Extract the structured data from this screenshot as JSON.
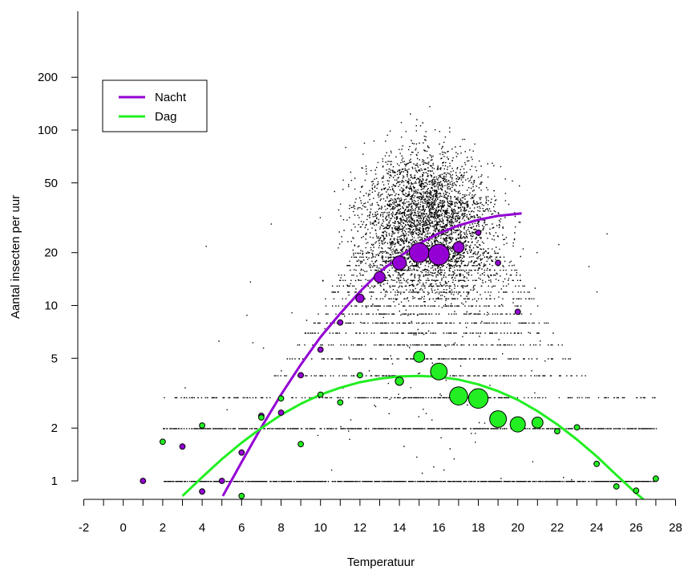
{
  "chart_data": {
    "type": "scatter",
    "title": "",
    "xlabel": "Temperatuur",
    "ylabel": "Aantal insecten per uur",
    "xlim": [
      -2,
      28
    ],
    "ylim": [
      0.85,
      400
    ],
    "y_scale": "log",
    "x_ticks": [
      -2,
      0,
      2,
      4,
      6,
      8,
      10,
      12,
      14,
      16,
      18,
      20,
      22,
      24,
      26,
      28
    ],
    "x_minor_step": 1,
    "y_ticks": [
      1,
      2,
      5,
      10,
      20,
      50,
      100,
      200
    ],
    "grid": false,
    "legend": {
      "position": "top-left",
      "entries": [
        "Nacht",
        "Dag"
      ]
    },
    "background_scatter": {
      "description_color": "#000000",
      "x_range": [
        2,
        27
      ],
      "peak_x": 15.5
    },
    "series": [
      {
        "name": "Nacht",
        "color": "#9400D3",
        "points": [
          {
            "x": 1,
            "y": 1.0,
            "size": 1
          },
          {
            "x": 3,
            "y": 1.57,
            "size": 1
          },
          {
            "x": 4,
            "y": 0.87,
            "size": 1
          },
          {
            "x": 5,
            "y": 1.0,
            "size": 1
          },
          {
            "x": 6,
            "y": 1.45,
            "size": 1
          },
          {
            "x": 7,
            "y": 2.35,
            "size": 1
          },
          {
            "x": 8,
            "y": 2.45,
            "size": 1
          },
          {
            "x": 9,
            "y": 4.0,
            "size": 1
          },
          {
            "x": 10,
            "y": 5.6,
            "size": 1
          },
          {
            "x": 11,
            "y": 8.0,
            "size": 1
          },
          {
            "x": 12,
            "y": 11.0,
            "size": 2
          },
          {
            "x": 13,
            "y": 14.5,
            "size": 3
          },
          {
            "x": 14,
            "y": 17.5,
            "size": 4
          },
          {
            "x": 15,
            "y": 20.0,
            "size": 6
          },
          {
            "x": 16,
            "y": 19.5,
            "size": 6.5
          },
          {
            "x": 17,
            "y": 21.5,
            "size": 3
          },
          {
            "x": 18,
            "y": 26.0,
            "size": 1
          },
          {
            "x": 19,
            "y": 17.5,
            "size": 1
          },
          {
            "x": 20,
            "y": 9.2,
            "size": 1
          }
        ],
        "fit": [
          {
            "x": 5.05,
            "y": 0.82
          },
          {
            "x": 6,
            "y": 1.28
          },
          {
            "x": 7,
            "y": 2.02
          },
          {
            "x": 8,
            "y": 3.1
          },
          {
            "x": 9,
            "y": 4.6
          },
          {
            "x": 10,
            "y": 6.6
          },
          {
            "x": 11,
            "y": 9.0
          },
          {
            "x": 12,
            "y": 12.0
          },
          {
            "x": 13,
            "y": 15.5
          },
          {
            "x": 14,
            "y": 19.0
          },
          {
            "x": 15,
            "y": 22.5
          },
          {
            "x": 16,
            "y": 25.8
          },
          {
            "x": 17,
            "y": 28.6
          },
          {
            "x": 18,
            "y": 30.8
          },
          {
            "x": 19,
            "y": 32.4
          },
          {
            "x": 20.2,
            "y": 33.5
          }
        ]
      },
      {
        "name": "Dag",
        "color": "#22EE22",
        "points": [
          {
            "x": 2,
            "y": 1.67,
            "size": 1
          },
          {
            "x": 4,
            "y": 2.07,
            "size": 1
          },
          {
            "x": 6,
            "y": 0.82,
            "size": 1
          },
          {
            "x": 7,
            "y": 2.3,
            "size": 1
          },
          {
            "x": 8,
            "y": 2.95,
            "size": 1
          },
          {
            "x": 9,
            "y": 1.62,
            "size": 1
          },
          {
            "x": 10,
            "y": 3.1,
            "size": 1
          },
          {
            "x": 11,
            "y": 2.8,
            "size": 1
          },
          {
            "x": 12,
            "y": 4.0,
            "size": 1
          },
          {
            "x": 14,
            "y": 3.7,
            "size": 2
          },
          {
            "x": 15,
            "y": 5.1,
            "size": 3
          },
          {
            "x": 16,
            "y": 4.2,
            "size": 5
          },
          {
            "x": 17,
            "y": 3.05,
            "size": 5.5
          },
          {
            "x": 18,
            "y": 2.95,
            "size": 6
          },
          {
            "x": 19,
            "y": 2.25,
            "size": 5
          },
          {
            "x": 20,
            "y": 2.1,
            "size": 4.5
          },
          {
            "x": 21,
            "y": 2.15,
            "size": 3
          },
          {
            "x": 22,
            "y": 1.92,
            "size": 1
          },
          {
            "x": 23,
            "y": 2.02,
            "size": 1
          },
          {
            "x": 24,
            "y": 1.25,
            "size": 1
          },
          {
            "x": 25,
            "y": 0.93,
            "size": 1
          },
          {
            "x": 26,
            "y": 0.88,
            "size": 1
          },
          {
            "x": 27,
            "y": 1.03,
            "size": 1
          }
        ],
        "fit": [
          {
            "x": 3,
            "y": 0.82
          },
          {
            "x": 4,
            "y": 1.05
          },
          {
            "x": 5,
            "y": 1.33
          },
          {
            "x": 6,
            "y": 1.65
          },
          {
            "x": 7,
            "y": 2.0
          },
          {
            "x": 8,
            "y": 2.38
          },
          {
            "x": 9,
            "y": 2.75
          },
          {
            "x": 10,
            "y": 3.1
          },
          {
            "x": 11,
            "y": 3.4
          },
          {
            "x": 12,
            "y": 3.65
          },
          {
            "x": 13,
            "y": 3.83
          },
          {
            "x": 14,
            "y": 3.94
          },
          {
            "x": 15,
            "y": 3.97
          },
          {
            "x": 16,
            "y": 3.92
          },
          {
            "x": 17,
            "y": 3.78
          },
          {
            "x": 18,
            "y": 3.55
          },
          {
            "x": 19,
            "y": 3.25
          },
          {
            "x": 20,
            "y": 2.9
          },
          {
            "x": 21,
            "y": 2.5
          },
          {
            "x": 22,
            "y": 2.1
          },
          {
            "x": 23,
            "y": 1.72
          },
          {
            "x": 24,
            "y": 1.38
          },
          {
            "x": 25,
            "y": 1.08
          },
          {
            "x": 26,
            "y": 0.85
          },
          {
            "x": 26.4,
            "y": 0.78
          }
        ]
      }
    ]
  }
}
